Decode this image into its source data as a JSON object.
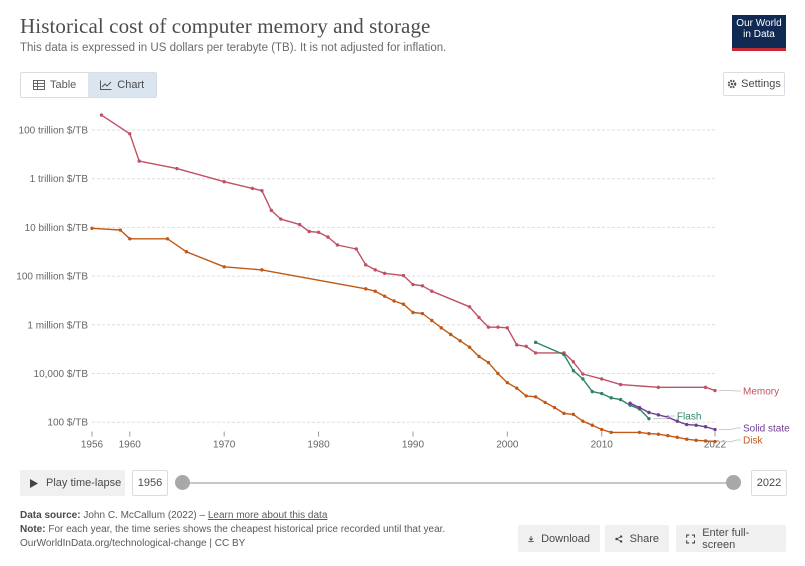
{
  "header": {
    "title": "Historical cost of computer memory and storage",
    "subtitle": "This data is expressed in US dollars per terabyte (TB). It is not adjusted for inflation.",
    "logo_line1": "Our World",
    "logo_line2": "in Data"
  },
  "tabs": {
    "table": "Table",
    "chart": "Chart"
  },
  "settings_label": "Settings",
  "timeline": {
    "play_label": "Play time-lapse",
    "start_year": "1956",
    "end_year": "2022"
  },
  "footer": {
    "source_label": "Data source:",
    "source_text": "John C. McCallum (2022) – ",
    "source_link": "Learn more about this data",
    "note_label": "Note:",
    "note_text": "For each year, the time series shows the cheapest historical price recorded until that year.",
    "url": "OurWorldInData.org/technological-change | CC BY"
  },
  "buttons": {
    "download": "Download",
    "share": "Share",
    "fullscreen": "Enter full-screen"
  },
  "colors": {
    "memory": "#c15065",
    "flash": "#2c8465",
    "solid_state": "#6d3e91",
    "disk": "#c05917",
    "grid": "#dddddd",
    "axis_text": "#666666"
  },
  "chart_data": {
    "type": "line",
    "y_scale": "log",
    "ylim": [
      50,
      400000000000000
    ],
    "xlim": [
      1956,
      2022
    ],
    "y_ticks": [
      {
        "value": 100,
        "label": "100 $/TB"
      },
      {
        "value": 10000,
        "label": "10,000 $/TB"
      },
      {
        "value": 1000000,
        "label": "1 million $/TB"
      },
      {
        "value": 100000000,
        "label": "100 million $/TB"
      },
      {
        "value": 10000000000,
        "label": "10 billion $/TB"
      },
      {
        "value": 1000000000000,
        "label": "1 trillion $/TB"
      },
      {
        "value": 100000000000000,
        "label": "100 trillion $/TB"
      }
    ],
    "x_ticks": [
      1956,
      1960,
      1970,
      1980,
      1990,
      2000,
      2010,
      2022
    ],
    "series": [
      {
        "name": "Memory",
        "color": "#c15065",
        "points": [
          [
            1957,
            411000000000000
          ],
          [
            1960,
            70000000000000
          ],
          [
            1961,
            5300000000000
          ],
          [
            1965,
            2600000000000
          ],
          [
            1970,
            750000000000
          ],
          [
            1973,
            400000000000
          ],
          [
            1974,
            320000000000
          ],
          [
            1975,
            50000000000
          ],
          [
            1976,
            22000000000
          ],
          [
            1978,
            13000000000
          ],
          [
            1979,
            6800000000
          ],
          [
            1980,
            6300000000
          ],
          [
            1981,
            4000000000
          ],
          [
            1982,
            1900000000
          ],
          [
            1984,
            1300000000
          ],
          [
            1985,
            290000000
          ],
          [
            1986,
            180000000
          ],
          [
            1987,
            130000000
          ],
          [
            1989,
            105000000
          ],
          [
            1990,
            45000000
          ],
          [
            1991,
            40000000
          ],
          [
            1992,
            24000000
          ],
          [
            1996,
            5500000
          ],
          [
            1997,
            2000000
          ],
          [
            1998,
            800000
          ],
          [
            1999,
            800000
          ],
          [
            2000,
            750000
          ],
          [
            2001,
            150000
          ],
          [
            2002,
            130000
          ],
          [
            2003,
            70000
          ],
          [
            2006,
            70000
          ],
          [
            2007,
            30000
          ],
          [
            2008,
            9500
          ],
          [
            2010,
            6000
          ],
          [
            2012,
            3500
          ],
          [
            2016,
            2700
          ],
          [
            2021,
            2700
          ],
          [
            2022,
            2000
          ]
        ]
      },
      {
        "name": "Flash",
        "color": "#2c8465",
        "points": [
          [
            2003,
            190000
          ],
          [
            2006,
            60000
          ],
          [
            2007,
            13000
          ],
          [
            2008,
            6000
          ],
          [
            2009,
            1800
          ],
          [
            2010,
            1500
          ],
          [
            2011,
            1000
          ],
          [
            2012,
            850
          ],
          [
            2013,
            500
          ],
          [
            2014,
            350
          ],
          [
            2015,
            140
          ]
        ]
      },
      {
        "name": "Solid state",
        "color": "#6d3e91",
        "points": [
          [
            2013,
            600
          ],
          [
            2014,
            400
          ],
          [
            2015,
            250
          ],
          [
            2016,
            200
          ],
          [
            2017,
            160
          ],
          [
            2018,
            110
          ],
          [
            2019,
            80
          ],
          [
            2020,
            75
          ],
          [
            2021,
            65
          ],
          [
            2022,
            50
          ]
        ]
      },
      {
        "name": "Disk",
        "color": "#c05917",
        "points": [
          [
            1956,
            9200000000
          ],
          [
            1959,
            7800000000
          ],
          [
            1960,
            3400000000
          ],
          [
            1964,
            3400000000
          ],
          [
            1966,
            1000000000
          ],
          [
            1970,
            240000000
          ],
          [
            1974,
            180000000
          ],
          [
            1985,
            30000000
          ],
          [
            1986,
            24000000
          ],
          [
            1987,
            15000000
          ],
          [
            1988,
            9500000
          ],
          [
            1989,
            7000000
          ],
          [
            1990,
            3200000
          ],
          [
            1991,
            2900000
          ],
          [
            1992,
            1500000
          ],
          [
            1993,
            750000
          ],
          [
            1994,
            400000
          ],
          [
            1995,
            220000
          ],
          [
            1996,
            120000
          ],
          [
            1997,
            50000
          ],
          [
            1998,
            28000
          ],
          [
            1999,
            10000
          ],
          [
            2000,
            4200
          ],
          [
            2001,
            2500
          ],
          [
            2002,
            1200
          ],
          [
            2003,
            1100
          ],
          [
            2004,
            650
          ],
          [
            2005,
            400
          ],
          [
            2006,
            230
          ],
          [
            2007,
            210
          ],
          [
            2008,
            110
          ],
          [
            2009,
            75
          ],
          [
            2010,
            50
          ],
          [
            2011,
            38
          ],
          [
            2014,
            38
          ],
          [
            2015,
            34
          ],
          [
            2016,
            32
          ],
          [
            2017,
            28
          ],
          [
            2018,
            24
          ],
          [
            2019,
            20
          ],
          [
            2020,
            18
          ],
          [
            2021,
            17
          ],
          [
            2022,
            16
          ]
        ]
      }
    ]
  }
}
